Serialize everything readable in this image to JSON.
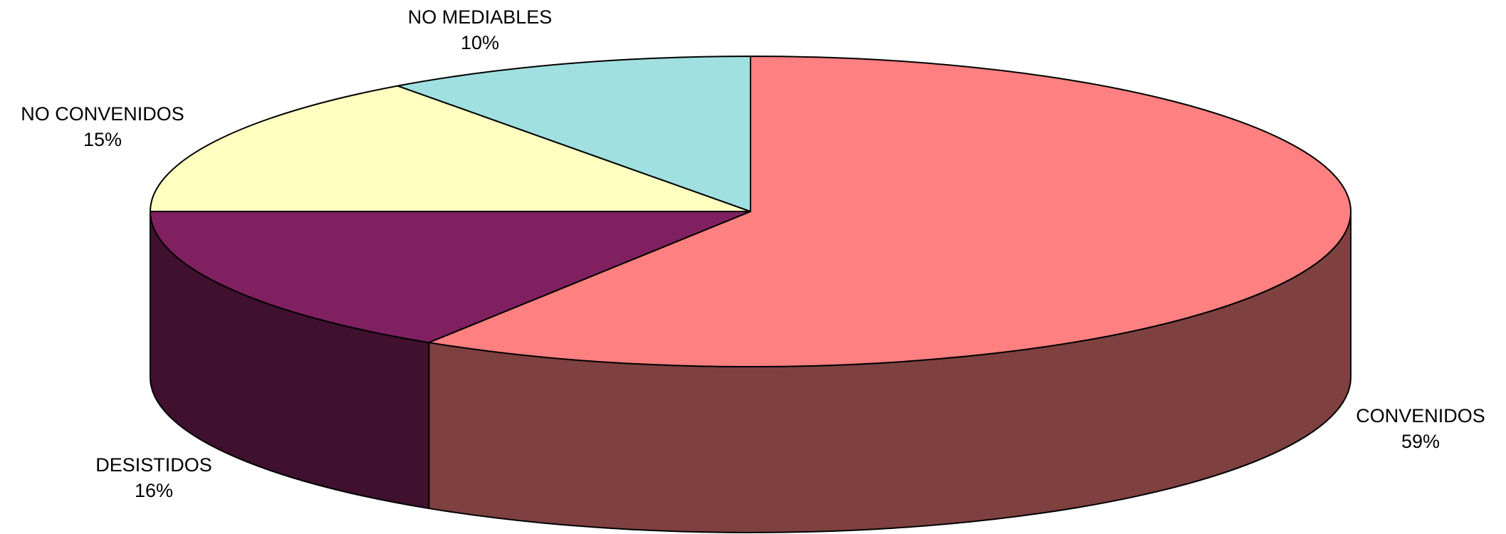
{
  "chart_data": {
    "type": "pie",
    "title": "",
    "style": "3d",
    "slices": [
      {
        "label": "CONVENIDOS",
        "percent_label": "59%",
        "value": 59,
        "color": "#FF8080",
        "side_color": "#7F4040"
      },
      {
        "label": "DESISTIDOS",
        "percent_label": "16%",
        "value": 16,
        "color": "#802060",
        "side_color": "#40102F"
      },
      {
        "label": "NO CONVENIDOS",
        "percent_label": "15%",
        "value": 15,
        "color": "#FFFFC0",
        "side_color": "#80805F"
      },
      {
        "label": "NO MEDIABLES",
        "percent_label": "10%",
        "value": 10,
        "color": "#A0E0E0",
        "side_color": "#507070"
      }
    ]
  }
}
